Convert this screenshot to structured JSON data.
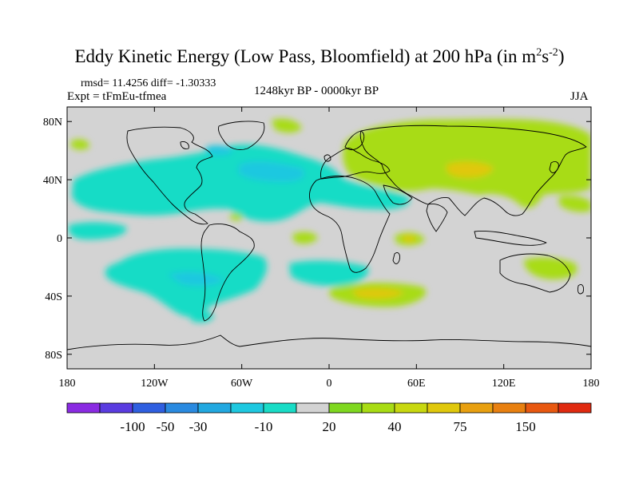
{
  "title": {
    "main": "Eddy Kinetic Energy (Low Pass, Bloomfield) at 200 hPa (in m",
    "sup1": "2",
    "mid": "s",
    "sup2": "-2",
    "end": ")"
  },
  "stats": "rmsd= 11.4256 diff= -1.30333",
  "experiment": "Expt = tFmEu-tfmea",
  "period": "1248kyr BP - 0000kyr BP",
  "season": "JJA",
  "map": {
    "lat_labels": [
      "80N",
      "40N",
      "0",
      "40S",
      "80S"
    ],
    "lat_values": [
      80,
      40,
      0,
      -40,
      -80
    ],
    "lon_labels": [
      "180",
      "120W",
      "60W",
      "0",
      "60E",
      "120E",
      "180"
    ],
    "lon_values": [
      -180,
      -120,
      -60,
      0,
      60,
      120,
      180
    ],
    "ocean_color": "#d3d3d3"
  },
  "colorbar": {
    "colors": [
      "#8a2be2",
      "#5a3ce0",
      "#2f5fe0",
      "#2a8ae0",
      "#22a8e0",
      "#1ec8e0",
      "#19dcc6",
      "#d3d3d3",
      "#7fd820",
      "#a8dc14",
      "#c8d810",
      "#e0c80c",
      "#e8a010",
      "#e88010",
      "#e85810",
      "#e02a10"
    ],
    "labels": [
      "-100",
      "-50",
      "-30",
      "-10",
      "20",
      "40",
      "75",
      "150"
    ]
  }
}
